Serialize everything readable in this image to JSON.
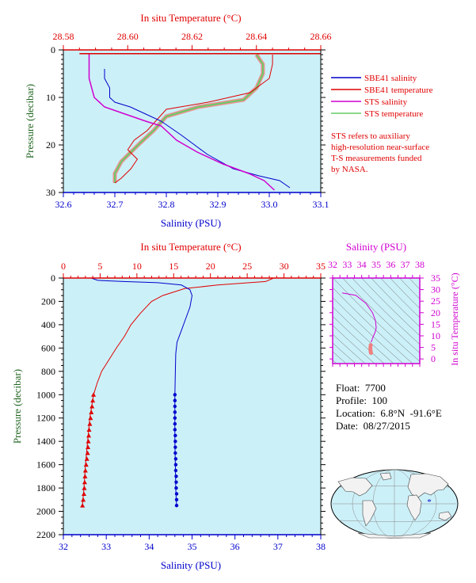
{
  "colors": {
    "plot_bg": "#ccf0f8",
    "red": "#e00000",
    "blue": "#0000cc",
    "magenta": "#d000d0",
    "green_label": "#226622",
    "ts_grid": "#666666",
    "salmon": "#f08080",
    "sts_temp": "#66cc66"
  },
  "top_panel": {
    "top_axis_title": "In situ Temperature (°C)",
    "bottom_axis_title": "Salinity (PSU)",
    "y_axis_title": "Pressure (decibar)",
    "temp_ticks": [
      "28.58",
      "28.60",
      "28.62",
      "28.64",
      "28.66"
    ],
    "sal_ticks": [
      "32.6",
      "32.7",
      "32.8",
      "32.9",
      "33.0",
      "33.1"
    ],
    "p_ticks": [
      "0",
      "10",
      "20",
      "30"
    ],
    "legend": [
      {
        "label": "SBE41 salinity",
        "color": "#0000cc"
      },
      {
        "label": "SBE41 temperature",
        "color": "#e00000"
      },
      {
        "label": "STS salinity",
        "color": "#d000d0"
      },
      {
        "label": "STS temperature",
        "color": "#66cc66"
      }
    ],
    "note": [
      "STS refers to auxiliary",
      "high-resolution near-surface",
      "T-S measurements funded",
      "by NASA."
    ]
  },
  "main_panel": {
    "top_axis_title": "In situ Temperature (°C)",
    "bottom_axis_title": "Salinity (PSU)",
    "y_axis_title": "Pressure (decibar)",
    "temp_ticks": [
      "0",
      "5",
      "10",
      "15",
      "20",
      "25",
      "30",
      "35"
    ],
    "sal_ticks": [
      "32",
      "33",
      "34",
      "35",
      "36",
      "37",
      "38"
    ],
    "p_ticks": [
      "0",
      "200",
      "400",
      "600",
      "800",
      "1000",
      "1200",
      "1400",
      "1600",
      "1800",
      "2000",
      "2200"
    ]
  },
  "ts_panel": {
    "top_axis_title": "Salinity (PSU)",
    "right_axis_title": "In situ Temperature (°C)",
    "sal_ticks": [
      "32",
      "33",
      "34",
      "35",
      "36",
      "37",
      "38"
    ],
    "temp_ticks": [
      "0",
      "5",
      "10",
      "15",
      "20",
      "25",
      "30",
      "35"
    ]
  },
  "float_info": {
    "float": "Float:  7700",
    "profile": "Profile:  100",
    "location": "Location:  6.8°N  -91.6°E",
    "date": "Date:  08/27/2015"
  },
  "chart_data": [
    {
      "type": "line",
      "panel": "near-surface (0-30 decibar)",
      "xlim_salinity": [
        32.6,
        33.1
      ],
      "xlim_temperature": [
        28.58,
        28.66
      ],
      "ylim_pressure": [
        30,
        0
      ],
      "series": [
        {
          "name": "SBE41 salinity",
          "x": [
            32.68,
            32.68,
            32.69,
            32.69,
            32.7,
            32.73,
            32.76,
            32.79,
            32.83,
            32.88,
            32.93,
            32.98,
            33.02,
            33.04
          ],
          "y": [
            4,
            6,
            8,
            10,
            11,
            12,
            13.5,
            15,
            18,
            22,
            25,
            26.5,
            27.5,
            29
          ]
        },
        {
          "name": "SBE41 temperature",
          "x": [
            28.645,
            28.645,
            28.644,
            28.638,
            28.625,
            28.612,
            28.61,
            28.606,
            28.602,
            28.6,
            28.603,
            28.601,
            28.598,
            28.596
          ],
          "y": [
            1,
            3,
            6,
            9,
            11,
            12.5,
            14,
            17,
            19,
            21,
            23,
            25,
            27,
            28
          ]
        },
        {
          "name": "STS salinity",
          "x": [
            32.65,
            32.65,
            32.65,
            32.66,
            32.68,
            32.72,
            32.76,
            32.79,
            32.82,
            32.86,
            32.91,
            32.96,
            32.99,
            33.0,
            33.01
          ],
          "y": [
            0.8,
            3,
            6,
            10,
            12,
            13.5,
            15,
            16,
            19,
            21.5,
            24,
            26,
            27.5,
            28.5,
            29.5
          ]
        },
        {
          "name": "STS temperature",
          "x": [
            28.64,
            28.642,
            28.642,
            28.64,
            28.636,
            28.622,
            28.612,
            28.608,
            28.604,
            28.601,
            28.598,
            28.596,
            28.596
          ],
          "y": [
            1,
            3,
            5,
            8,
            10.5,
            12,
            14,
            17,
            19.5,
            21.5,
            23.5,
            26,
            28
          ]
        }
      ]
    },
    {
      "type": "line",
      "panel": "full profile (0-2200 decibar)",
      "xlim_salinity": [
        32,
        38
      ],
      "xlim_temperature": [
        0,
        35
      ],
      "ylim_pressure": [
        2200,
        0
      ],
      "series": [
        {
          "name": "SBE41 salinity",
          "x": [
            32.65,
            32.8,
            33.4,
            34.2,
            34.75,
            34.95,
            35.0,
            34.95,
            34.85,
            34.75,
            34.65,
            34.62,
            34.61,
            34.6,
            34.6,
            34.6,
            34.61,
            34.62,
            34.63,
            34.64
          ],
          "y": [
            0,
            20,
            30,
            40,
            60,
            100,
            150,
            250,
            350,
            450,
            550,
            650,
            800,
            1000,
            1200,
            1400,
            1600,
            1800,
            1900,
            1950
          ]
        },
        {
          "name": "SBE41 temperature",
          "x": [
            28.6,
            27.5,
            21.0,
            16.5,
            13.5,
            12.0,
            10.5,
            9.2,
            8.3,
            7.2,
            6.2,
            5.2,
            4.6,
            4.1,
            3.6,
            3.3,
            3.0,
            2.8,
            2.6
          ],
          "y": [
            0,
            30,
            60,
            90,
            150,
            200,
            300,
            400,
            500,
            600,
            700,
            800,
            900,
            1000,
            1200,
            1400,
            1600,
            1800,
            1950
          ]
        },
        {
          "name": "SBE41 salinity (discrete)",
          "x": [
            34.6,
            34.6,
            34.6,
            34.6,
            34.6,
            34.6,
            34.6,
            34.61,
            34.61,
            34.61,
            34.61,
            34.62,
            34.62,
            34.62,
            34.63,
            34.63,
            34.63,
            34.64,
            34.64,
            34.64
          ],
          "y": [
            1000,
            1050,
            1100,
            1150,
            1200,
            1250,
            1300,
            1350,
            1400,
            1450,
            1500,
            1550,
            1600,
            1650,
            1700,
            1750,
            1800,
            1850,
            1900,
            1950
          ]
        },
        {
          "name": "SBE41 temperature (discrete)",
          "x": [
            4.1,
            4.0,
            3.9,
            3.8,
            3.7,
            3.6,
            3.5,
            3.45,
            3.4,
            3.35,
            3.3,
            3.2,
            3.1,
            3.0,
            2.95,
            2.9,
            2.85,
            2.8,
            2.7,
            2.6
          ],
          "y": [
            1000,
            1050,
            1100,
            1150,
            1200,
            1250,
            1300,
            1350,
            1400,
            1450,
            1500,
            1550,
            1600,
            1650,
            1700,
            1750,
            1800,
            1850,
            1900,
            1950
          ]
        }
      ]
    },
    {
      "type": "scatter",
      "panel": "T-S diagram",
      "xlim_salinity": [
        32,
        38
      ],
      "ylim_temperature": [
        -2,
        35
      ],
      "series": [
        {
          "name": "T-S (upper)",
          "x": [
            32.65,
            32.8,
            33.6,
            34.3,
            34.75,
            34.95,
            35.0,
            34.95,
            34.85,
            34.75,
            34.7,
            34.65
          ],
          "y": [
            28.6,
            28.4,
            27.5,
            24.0,
            20.0,
            16.5,
            13.5,
            12.0,
            10.5,
            9.0,
            8.0,
            7.2
          ]
        },
        {
          "name": "T-S (deep)",
          "x": [
            34.62,
            34.6,
            34.6,
            34.61,
            34.62,
            34.63,
            34.64
          ],
          "y": [
            6.0,
            5.0,
            4.1,
            3.6,
            3.2,
            2.9,
            2.6
          ]
        }
      ]
    }
  ]
}
